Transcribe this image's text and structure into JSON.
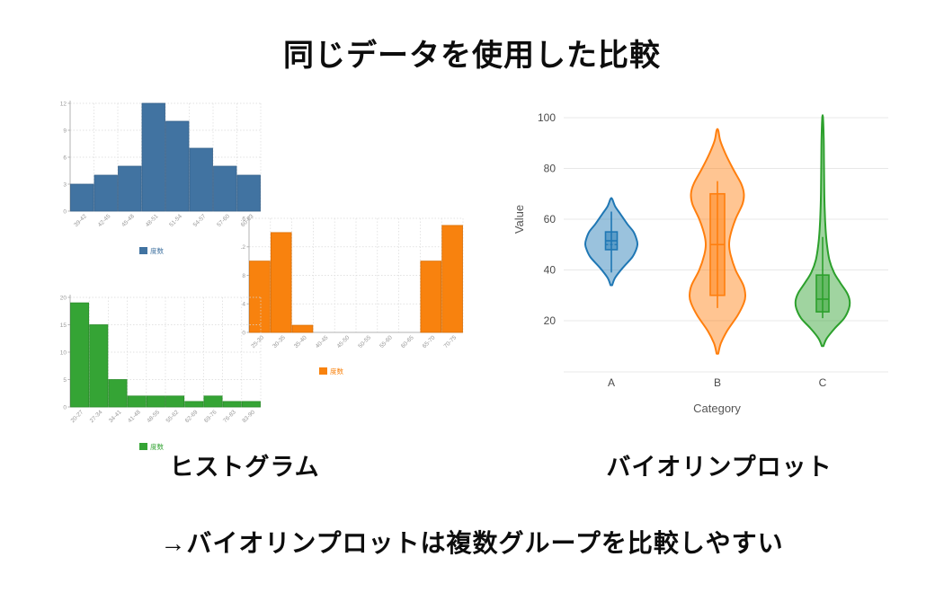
{
  "title": "同じデータを使用した比較",
  "captions": {
    "left": "ヒストグラム",
    "right": "バイオリンプロット"
  },
  "note": "→バイオリンプロットは複数グループを比較しやすい",
  "chart_data": [
    {
      "type": "bar",
      "name": "histogram-blue",
      "legend": "度数",
      "color": "#4173a1",
      "border": "#36618b",
      "categories": [
        "39-42",
        "42-45",
        "45-48",
        "48-51",
        "51-54",
        "54-57",
        "57-60",
        "60-63"
      ],
      "values": [
        3,
        4,
        5,
        12,
        10,
        7,
        5,
        4
      ],
      "yticks": [
        0,
        3,
        6,
        9,
        12
      ],
      "ylim": [
        0,
        12
      ],
      "grid": true,
      "legend_position": "bottom"
    },
    {
      "type": "bar",
      "name": "histogram-orange",
      "legend": "度数",
      "color": "#f8820e",
      "border": "#da6f05",
      "categories": [
        "25-30",
        "30-35",
        "35-40",
        "40-45",
        "45-50",
        "50-55",
        "55-60",
        "60-65",
        "65-70",
        "70-75"
      ],
      "values": [
        10,
        14,
        1,
        0,
        0,
        0,
        0,
        0,
        10,
        15
      ],
      "yticks": [
        0,
        4,
        8,
        12,
        16
      ],
      "ylim": [
        0,
        16
      ],
      "grid": true,
      "legend_position": "bottom"
    },
    {
      "type": "bar",
      "name": "histogram-green",
      "legend": "度数",
      "color": "#35a435",
      "border": "#2b8c2b",
      "categories": [
        "20-27",
        "27-34",
        "34-41",
        "41-48",
        "48-55",
        "55-62",
        "62-69",
        "69-76",
        "76-83",
        "83-90"
      ],
      "values": [
        19,
        15,
        5,
        2,
        2,
        2,
        1,
        2,
        1,
        1
      ],
      "yticks": [
        0,
        5,
        10,
        15,
        20
      ],
      "ylim": [
        0,
        20
      ],
      "grid": true,
      "legend_position": "bottom"
    },
    {
      "type": "violin",
      "name": "violin-plot",
      "xlabel": "Category",
      "ylabel": "Value",
      "categories": [
        "A",
        "B",
        "C"
      ],
      "yticks": [
        20,
        40,
        60,
        80,
        100
      ],
      "ylim": [
        0,
        100
      ],
      "grid": true,
      "series": [
        {
          "name": "A",
          "color": "#1f77b4",
          "min": 34,
          "max": 68,
          "q1": 48,
          "q3": 55,
          "median": 51.5,
          "mean": 50,
          "whisker_low": 39,
          "whisker_high": 63,
          "profile": [
            [
              34,
              0.03
            ],
            [
              37,
              0.15
            ],
            [
              41,
              0.45
            ],
            [
              45,
              0.8
            ],
            [
              48,
              0.95
            ],
            [
              50,
              1.0
            ],
            [
              52,
              0.97
            ],
            [
              55,
              0.85
            ],
            [
              58,
              0.62
            ],
            [
              62,
              0.35
            ],
            [
              65,
              0.15
            ],
            [
              68,
              0.03
            ]
          ]
        },
        {
          "name": "B",
          "color": "#ff7f0e",
          "min": 7,
          "max": 95,
          "q1": 30,
          "q3": 70,
          "median": 50,
          "whisker_low": 25,
          "whisker_high": 75,
          "profile": [
            [
              7,
              0.03
            ],
            [
              11,
              0.12
            ],
            [
              16,
              0.35
            ],
            [
              22,
              0.72
            ],
            [
              27,
              0.95
            ],
            [
              30,
              1.0
            ],
            [
              34,
              0.93
            ],
            [
              40,
              0.65
            ],
            [
              46,
              0.47
            ],
            [
              50,
              0.42
            ],
            [
              54,
              0.47
            ],
            [
              60,
              0.65
            ],
            [
              66,
              0.9
            ],
            [
              70,
              0.95
            ],
            [
              74,
              0.85
            ],
            [
              80,
              0.55
            ],
            [
              86,
              0.28
            ],
            [
              91,
              0.1
            ],
            [
              95,
              0.03
            ]
          ]
        },
        {
          "name": "C",
          "color": "#2ca02c",
          "min": 10,
          "max": 100,
          "q1": 23.5,
          "q3": 38,
          "median": 28.5,
          "whisker_low": 21,
          "whisker_high": 53,
          "profile": [
            [
              10,
              0.03
            ],
            [
              13,
              0.15
            ],
            [
              17,
              0.45
            ],
            [
              21,
              0.8
            ],
            [
              25,
              0.98
            ],
            [
              28,
              1.0
            ],
            [
              31,
              0.9
            ],
            [
              35,
              0.65
            ],
            [
              39,
              0.42
            ],
            [
              44,
              0.25
            ],
            [
              50,
              0.16
            ],
            [
              56,
              0.11
            ],
            [
              63,
              0.08
            ],
            [
              72,
              0.06
            ],
            [
              82,
              0.05
            ],
            [
              92,
              0.04
            ],
            [
              100,
              0.015
            ]
          ]
        }
      ]
    }
  ]
}
